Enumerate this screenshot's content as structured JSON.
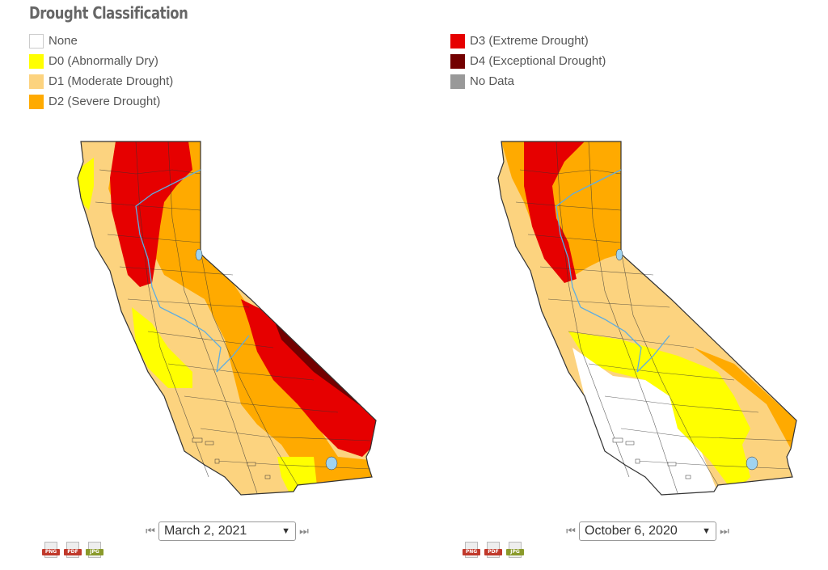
{
  "title": "Drought Classification",
  "legend_left": [
    {
      "label": "None",
      "color": "#ffffff"
    },
    {
      "label": "D0 (Abnormally Dry)",
      "color": "#ffff00"
    },
    {
      "label": "D1 (Moderate Drought)",
      "color": "#fcd37f"
    },
    {
      "label": "D2 (Severe Drought)",
      "color": "#ffaa00"
    }
  ],
  "legend_right": [
    {
      "label": "D3 (Extreme Drought)",
      "color": "#e60000"
    },
    {
      "label": "D4 (Exceptional Drought)",
      "color": "#730000"
    },
    {
      "label": "No Data",
      "color": "#999999"
    }
  ],
  "maps": [
    {
      "date": "March 2, 2021"
    },
    {
      "date": "October 6, 2020"
    }
  ],
  "exports": {
    "png": "PNG",
    "pdf": "PDF",
    "jpg": "JPG"
  },
  "colors": {
    "png": "#c0392b",
    "pdf": "#c0392b",
    "jpg": "#8a9a2b",
    "county_line": "#333333",
    "river": "#5dade2"
  }
}
